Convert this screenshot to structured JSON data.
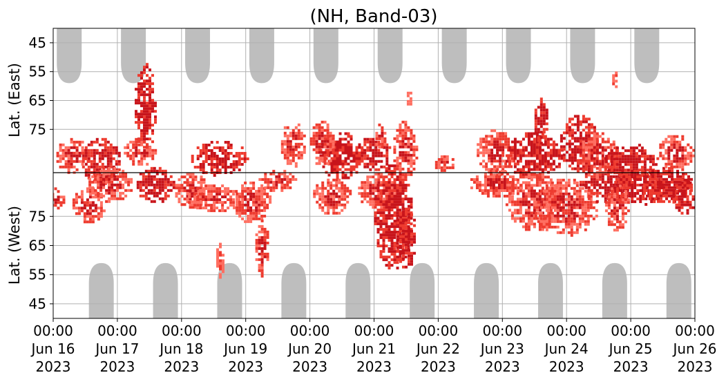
{
  "chart_data": {
    "type": "heatmap",
    "title": "(NH, Band-03)",
    "ylabel_top": "Lat. (East)",
    "ylabel_bottom": "Lat. (West)",
    "xlabel": "",
    "x_range": [
      "2023-06-16 00:00",
      "2023-06-26 00:00"
    ],
    "x_ticks": [
      {
        "line1": "00:00",
        "line2": "Jun 16",
        "line3": "2023"
      },
      {
        "line1": "00:00",
        "line2": "Jun 17",
        "line3": "2023"
      },
      {
        "line1": "00:00",
        "line2": "Jun 18",
        "line3": "2023"
      },
      {
        "line1": "00:00",
        "line2": "Jun 19",
        "line3": "2023"
      },
      {
        "line1": "00:00",
        "line2": "Jun 20",
        "line3": "2023"
      },
      {
        "line1": "00:00",
        "line2": "Jun 21",
        "line3": "2023"
      },
      {
        "line1": "00:00",
        "line2": "Jun 22",
        "line3": "2023"
      },
      {
        "line1": "00:00",
        "line2": "Jun 23",
        "line3": "2023"
      },
      {
        "line1": "00:00",
        "line2": "Jun 24",
        "line3": "2023"
      },
      {
        "line1": "00:00",
        "line2": "Jun 25",
        "line3": "2023"
      },
      {
        "line1": "00:00",
        "line2": "Jun 26",
        "line3": "2023"
      }
    ],
    "y_ticks_top": [
      45,
      55,
      65,
      75
    ],
    "y_ticks_bottom": [
      75,
      65,
      55,
      45
    ],
    "lat_range_each_side": [
      40,
      90
    ],
    "grid": true,
    "colors": {
      "night_shading": "#bebebe",
      "weak": "#ff6f61",
      "medium": "#ee3b2f",
      "strong": "#c8141b",
      "grid": "#b0b0b0",
      "divider": "#000000"
    },
    "night_lobes_top_days": [
      0.25,
      1.25,
      2.25,
      3.25,
      4.25,
      5.25,
      6.25,
      7.25,
      8.25,
      9.25
    ],
    "night_lobes_bottom_days": [
      0.75,
      1.75,
      2.75,
      3.75,
      4.75,
      5.75,
      6.75,
      7.75,
      8.75,
      9.75
    ],
    "clusters": [
      {
        "day": 0.05,
        "lat": 81,
        "side": "west",
        "dday": 0.12,
        "dlat": 4,
        "level": 2
      },
      {
        "day": 0.3,
        "lat": 84,
        "side": "east",
        "dday": 0.25,
        "dlat": 6,
        "level": 2
      },
      {
        "day": 0.55,
        "lat": 79,
        "side": "west",
        "dday": 0.25,
        "dlat": 6,
        "level": 2
      },
      {
        "day": 0.75,
        "lat": 86,
        "side": "east",
        "dday": 0.3,
        "dlat": 8,
        "level": 3
      },
      {
        "day": 0.9,
        "lat": 86,
        "side": "west",
        "dday": 0.35,
        "dlat": 6,
        "level": 2
      },
      {
        "day": 1.45,
        "lat": 68,
        "side": "east",
        "dday": 0.18,
        "dlat": 16,
        "level": 3
      },
      {
        "day": 1.6,
        "lat": 86,
        "side": "west",
        "dday": 0.3,
        "dlat": 6,
        "level": 3
      },
      {
        "day": 1.35,
        "lat": 83,
        "side": "east",
        "dday": 0.25,
        "dlat": 5,
        "level": 2
      },
      {
        "day": 2.15,
        "lat": 84,
        "side": "west",
        "dday": 0.25,
        "dlat": 6,
        "level": 2
      },
      {
        "day": 2.5,
        "lat": 81,
        "side": "west",
        "dday": 0.4,
        "dlat": 5,
        "level": 2
      },
      {
        "day": 2.6,
        "lat": 60,
        "side": "west",
        "dday": 0.06,
        "dlat": 6,
        "level": 1
      },
      {
        "day": 2.6,
        "lat": 85,
        "side": "east",
        "dday": 0.45,
        "dlat": 6,
        "level": 3
      },
      {
        "day": 3.1,
        "lat": 80,
        "side": "west",
        "dday": 0.3,
        "dlat": 7,
        "level": 2
      },
      {
        "day": 3.25,
        "lat": 64,
        "side": "west",
        "dday": 0.1,
        "dlat": 10,
        "level": 2
      },
      {
        "day": 3.5,
        "lat": 87,
        "side": "west",
        "dday": 0.3,
        "dlat": 4,
        "level": 2
      },
      {
        "day": 3.75,
        "lat": 80,
        "side": "east",
        "dday": 0.2,
        "dlat": 8,
        "level": 2
      },
      {
        "day": 4.35,
        "lat": 82,
        "side": "west",
        "dday": 0.3,
        "dlat": 6,
        "level": 2
      },
      {
        "day": 4.5,
        "lat": 84,
        "side": "east",
        "dday": 0.35,
        "dlat": 8,
        "level": 3
      },
      {
        "day": 4.2,
        "lat": 80,
        "side": "east",
        "dday": 0.2,
        "dlat": 8,
        "level": 2
      },
      {
        "day": 5.05,
        "lat": 84,
        "side": "west",
        "dday": 0.3,
        "dlat": 6,
        "level": 2
      },
      {
        "day": 5.0,
        "lat": 83,
        "side": "east",
        "dday": 0.25,
        "dlat": 6,
        "level": 3
      },
      {
        "day": 5.3,
        "lat": 75,
        "side": "west",
        "dday": 0.3,
        "dlat": 18,
        "level": 3
      },
      {
        "day": 5.5,
        "lat": 68,
        "side": "west",
        "dday": 0.15,
        "dlat": 12,
        "level": 3
      },
      {
        "day": 5.1,
        "lat": 78,
        "side": "east",
        "dday": 0.08,
        "dlat": 5,
        "level": 2
      },
      {
        "day": 5.5,
        "lat": 82,
        "side": "east",
        "dday": 0.2,
        "dlat": 10,
        "level": 2
      },
      {
        "day": 5.55,
        "lat": 65,
        "side": "east",
        "dday": 0.04,
        "dlat": 4,
        "level": 1
      },
      {
        "day": 6.1,
        "lat": 87,
        "side": "east",
        "dday": 0.15,
        "dlat": 3,
        "level": 2
      },
      {
        "day": 6.9,
        "lat": 83,
        "side": "east",
        "dday": 0.3,
        "dlat": 8,
        "level": 2
      },
      {
        "day": 6.9,
        "lat": 86,
        "side": "west",
        "dday": 0.4,
        "dlat": 5,
        "level": 2
      },
      {
        "day": 7.5,
        "lat": 84,
        "side": "east",
        "dday": 0.45,
        "dlat": 8,
        "level": 3
      },
      {
        "day": 7.5,
        "lat": 80,
        "side": "west",
        "dday": 0.45,
        "dlat": 10,
        "level": 2
      },
      {
        "day": 7.6,
        "lat": 72,
        "side": "east",
        "dday": 0.1,
        "dlat": 8,
        "level": 3
      },
      {
        "day": 8.2,
        "lat": 80,
        "side": "east",
        "dday": 0.3,
        "dlat": 10,
        "level": 3
      },
      {
        "day": 8.0,
        "lat": 78,
        "side": "west",
        "dday": 0.5,
        "dlat": 10,
        "level": 2
      },
      {
        "day": 8.6,
        "lat": 86,
        "side": "west",
        "dday": 0.4,
        "dlat": 6,
        "level": 3
      },
      {
        "day": 8.5,
        "lat": 84,
        "side": "east",
        "dday": 0.3,
        "dlat": 8,
        "level": 2
      },
      {
        "day": 8.75,
        "lat": 58,
        "side": "east",
        "dday": 0.04,
        "dlat": 4,
        "level": 2
      },
      {
        "day": 9.0,
        "lat": 86,
        "side": "east",
        "dday": 0.4,
        "dlat": 6,
        "level": 3
      },
      {
        "day": 9.1,
        "lat": 85,
        "side": "west",
        "dday": 0.4,
        "dlat": 6,
        "level": 3
      },
      {
        "day": 8.8,
        "lat": 78,
        "side": "west",
        "dday": 0.2,
        "dlat": 8,
        "level": 2
      },
      {
        "day": 9.55,
        "lat": 86,
        "side": "west",
        "dday": 0.4,
        "dlat": 6,
        "level": 3
      },
      {
        "day": 9.7,
        "lat": 83,
        "side": "east",
        "dday": 0.3,
        "dlat": 6,
        "level": 2
      },
      {
        "day": 9.85,
        "lat": 82,
        "side": "west",
        "dday": 0.2,
        "dlat": 6,
        "level": 3
      }
    ]
  }
}
